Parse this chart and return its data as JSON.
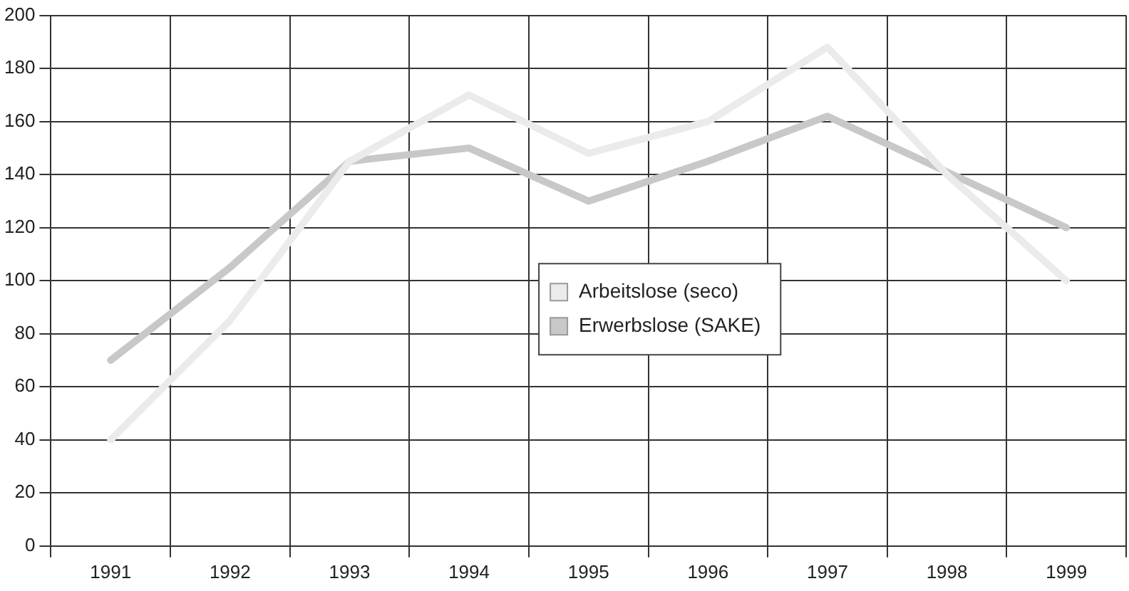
{
  "chart_data": {
    "type": "line",
    "categories": [
      "1991",
      "1992",
      "1993",
      "1994",
      "1995",
      "1996",
      "1997",
      "1998",
      "1999"
    ],
    "series": [
      {
        "name": "Arbeitslose (seco)",
        "color": "#ebebeb",
        "values": [
          40,
          85,
          145,
          170,
          148,
          160,
          188,
          140,
          100
        ]
      },
      {
        "name": "Erwerbslose (SAKE)",
        "color": "#c8c8c8",
        "values": [
          70,
          105,
          145,
          150,
          130,
          145,
          162,
          141,
          120
        ]
      }
    ],
    "ylim": [
      0,
      200
    ],
    "yticks": [
      0,
      20,
      40,
      60,
      80,
      100,
      120,
      140,
      160,
      180,
      200
    ],
    "grid": true,
    "legend": "center",
    "marker": "none",
    "line_style": "solid"
  }
}
